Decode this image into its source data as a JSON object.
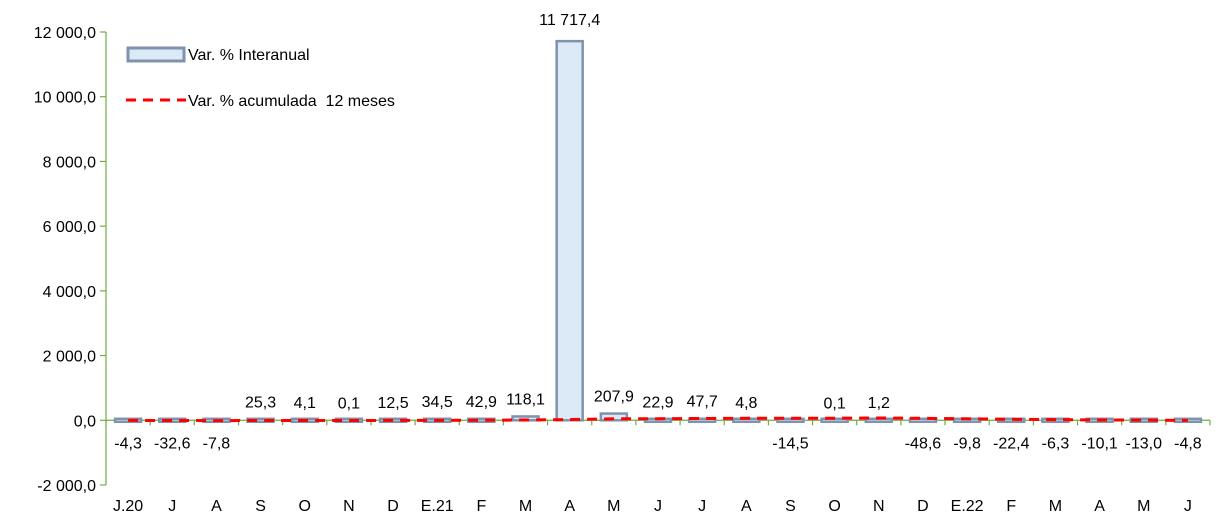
{
  "chart_data": {
    "type": "bar",
    "categories": [
      "J.20",
      "J",
      "A",
      "S",
      "O",
      "N",
      "D",
      "E.21",
      "F",
      "M",
      "A",
      "M",
      "J",
      "J",
      "A",
      "S",
      "O",
      "N",
      "D",
      "E.22",
      "F",
      "M",
      "A",
      "M",
      "J"
    ],
    "series": [
      {
        "name": "Var. % Interanual",
        "type": "bar",
        "values": [
          -4.3,
          -32.6,
          -7.8,
          25.3,
          4.1,
          0.1,
          12.5,
          34.5,
          42.9,
          118.1,
          11717.4,
          207.9,
          22.9,
          47.7,
          4.8,
          -14.5,
          0.1,
          1.2,
          -48.6,
          -9.8,
          -22.4,
          -6.3,
          -10.1,
          -13.0,
          -4.8
        ],
        "labels": [
          "-4,3",
          "-32,6",
          "-7,8",
          "25,3",
          "4,1",
          "0,1",
          "12,5",
          "34,5",
          "42,9",
          "118,1",
          "11 717,4",
          "207,9",
          "22,9",
          "47,7",
          "4,8",
          "-14,5",
          "0,1",
          "1,2",
          "-48,6",
          "-9,8",
          "-22,4",
          "-6,3",
          "-10,1",
          "-13,0",
          "-4,8"
        ],
        "fill": "#dce9f7",
        "stroke": "#7f93ac"
      },
      {
        "name": "Var. % acumulada  12 meses",
        "type": "line",
        "style": "dashed",
        "values": [
          -5,
          -8,
          -10,
          -8,
          -7,
          -6,
          -5,
          -2,
          2,
          8,
          25,
          45,
          50,
          55,
          60,
          60,
          65,
          70,
          60,
          45,
          30,
          20,
          10,
          5,
          -5
        ],
        "color": "#ff0000"
      }
    ],
    "ylim": [
      -2000,
      12000
    ],
    "yticks": [
      -2000,
      0,
      2000,
      4000,
      6000,
      8000,
      10000,
      12000
    ],
    "ytick_labels": [
      "-2 000,0",
      "0,0",
      "2 000,0",
      "4 000,0",
      "6 000,0",
      "8 000,0",
      "10 000,0",
      "12 000,0"
    ],
    "title": "",
    "xlabel": "",
    "ylabel": "",
    "legend_position": "top-left",
    "grid": false,
    "axis_color": "#70ad47"
  }
}
